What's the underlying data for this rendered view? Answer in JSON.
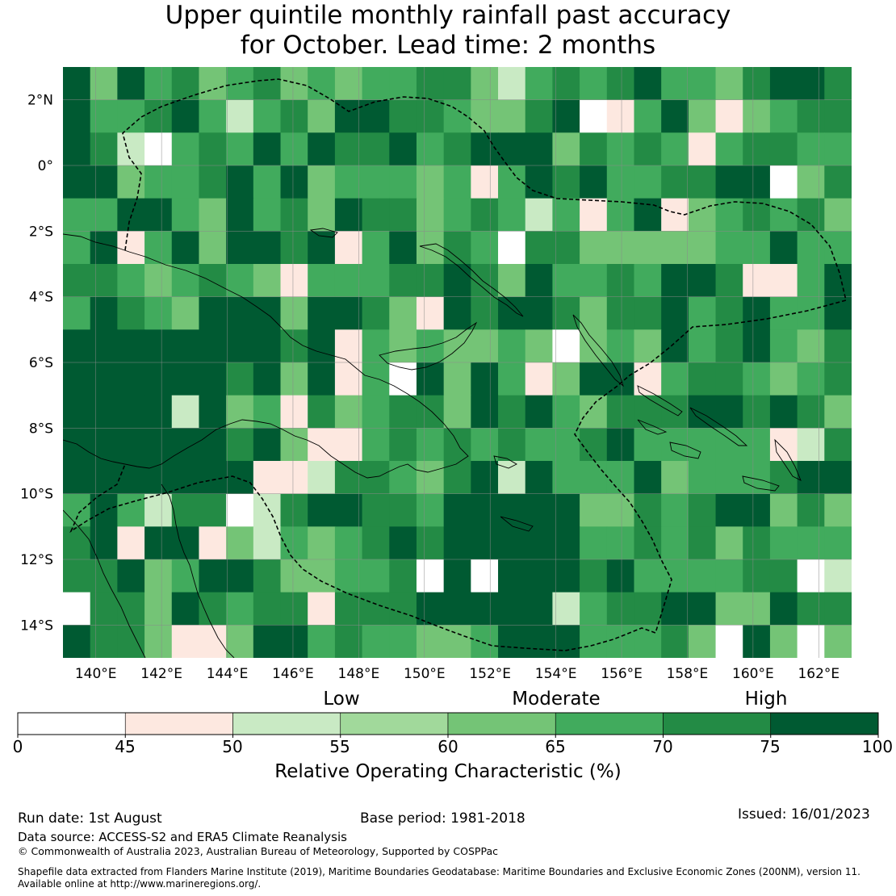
{
  "title_line1": "Upper quintile monthly rainfall past accuracy",
  "title_line2": "for October. Lead time: 2 months",
  "map": {
    "lon_range": [
      139,
      163
    ],
    "lat_range": [
      -15,
      3
    ],
    "lon_ticks": [
      "140°E",
      "142°E",
      "144°E",
      "146°E",
      "148°E",
      "150°E",
      "152°E",
      "154°E",
      "156°E",
      "158°E",
      "160°E",
      "162°E"
    ],
    "lat_ticks": [
      "2°N",
      "0°",
      "2°S",
      "4°S",
      "6°S",
      "8°S",
      "10°S",
      "12°S",
      "14°S"
    ]
  },
  "colorbar": {
    "categories": [
      "Low",
      "Moderate",
      "High"
    ],
    "ticks": [
      "0",
      "45",
      "50",
      "55",
      "60",
      "65",
      "70",
      "75",
      "100"
    ],
    "colors": [
      "#ffffff",
      "#fde8e0",
      "#c9eac4",
      "#a1d99b",
      "#74c476",
      "#41ab5d",
      "#238b45",
      "#005a32"
    ],
    "label": "Relative Operating Characteristic (%)"
  },
  "footer": {
    "run_date": "Run date: 1st August",
    "base_period": "Base period: 1981-2018",
    "issued": "Issued: 16/01/2023",
    "data_source": "Data source: ACCESS-S2 and ERA5 Climate Reanalysis",
    "copyright": "© Commonwealth of Australia 2023, Australian Bureau of Meteorology, Supported by COSPPac",
    "shapefile_line1": "Shapefile data extracted from Flanders Marine Institute (2019), Maritime Boundaries Geodatabase: Maritime Boundaries and Exclusive Economic Zones (200NM), version 11.",
    "shapefile_line2": "Available online at http://www.marineregions.org/."
  }
}
